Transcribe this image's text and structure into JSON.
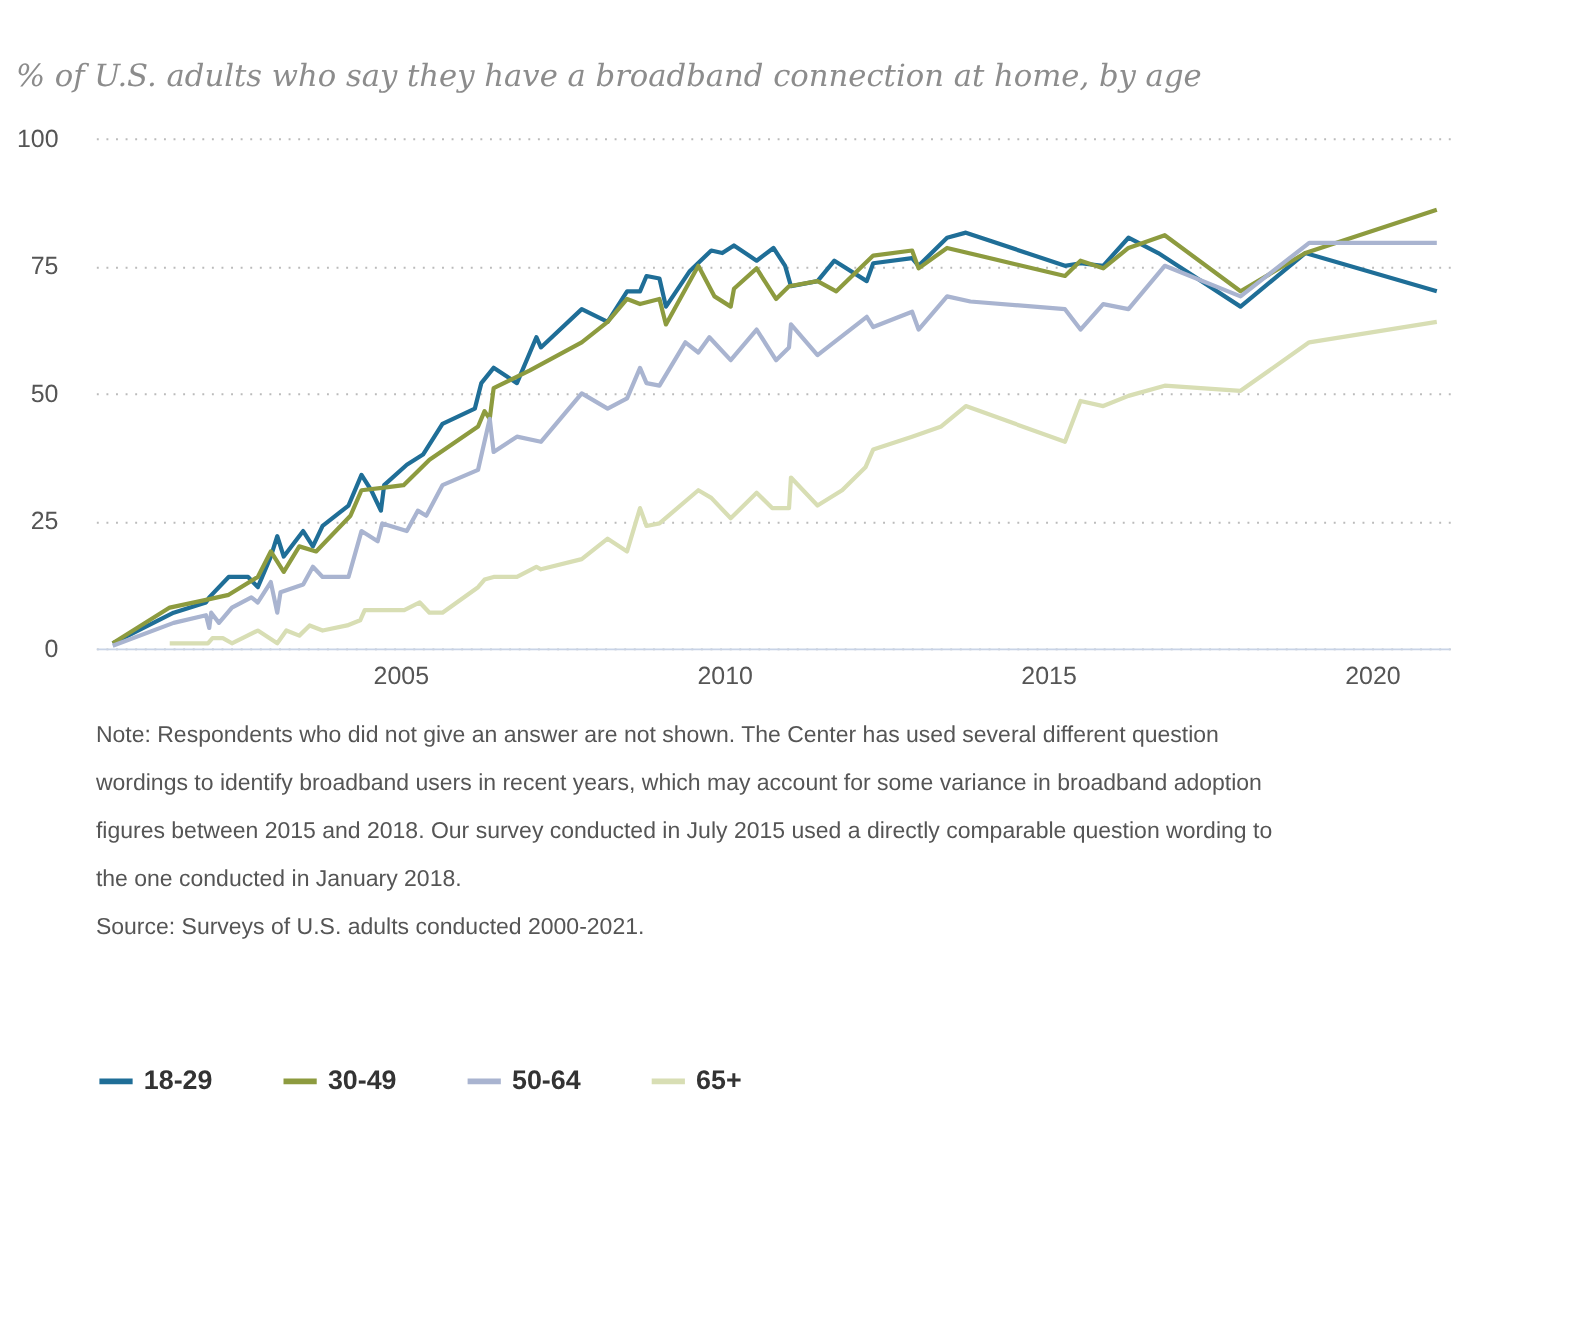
{
  "chart_data": {
    "type": "line",
    "subtitle": "% of U.S. adults who say they have a broadband connection at home, by age",
    "xlim": [
      2000.3,
      2021.2
    ],
    "xticks": [
      2005,
      2010,
      2015,
      2020
    ],
    "ylim": [
      0,
      100
    ],
    "yticks": [
      0,
      25,
      50,
      75,
      100
    ],
    "grid": "y",
    "legend": "bottom",
    "marker": "none",
    "line_style": "solid",
    "series": [
      {
        "name": "18-29",
        "color": "#1f6e97",
        "x": [
          2000.56,
          2001.5,
          2002.0,
          2002.05,
          2002.35,
          2002.65,
          2002.8,
          2003.0,
          2003.1,
          2003.2,
          2003.5,
          2003.65,
          2003.8,
          2004.2,
          2004.4,
          2004.55,
          2004.7,
          2004.75,
          2005.1,
          2005.35,
          2005.65,
          2006.15,
          2006.25,
          2006.44,
          2006.8,
          2007.1,
          2007.17,
          2007.8,
          2008.2,
          2008.5,
          2008.7,
          2008.8,
          2009.0,
          2009.1,
          2009.47,
          2009.8,
          2009.97,
          2010.15,
          2010.5,
          2010.76,
          2010.94,
          2011.03,
          2011.44,
          2011.7,
          2012.2,
          2012.3,
          2012.9,
          2013.0,
          2013.44,
          2013.73,
          2015.26,
          2015.5,
          2015.85,
          2016.24,
          2016.7,
          2017.97,
          2018.97,
          2021.0
        ],
        "values": [
          1,
          7,
          9,
          10,
          14,
          14,
          12,
          18,
          22,
          18,
          23,
          20,
          24,
          28,
          34,
          31,
          27,
          32,
          36,
          38,
          44,
          47,
          52,
          55,
          52,
          61,
          59,
          66.5,
          64,
          70,
          70,
          73,
          72.5,
          67,
          74,
          78,
          77.5,
          79,
          76,
          78.5,
          75,
          71,
          72,
          76,
          72,
          75.5,
          76.5,
          75,
          80.5,
          81.5,
          75,
          75.5,
          75,
          80.5,
          77.5,
          67,
          77.5,
          70
        ]
      },
      {
        "name": "30-49",
        "color": "#8d9b3f",
        "x": [
          2000.56,
          2001.44,
          2002.0,
          2002.35,
          2002.8,
          2003.0,
          2003.2,
          2003.44,
          2003.7,
          2004.23,
          2004.4,
          2004.75,
          2005.05,
          2005.45,
          2006.2,
          2006.3,
          2006.38,
          2006.44,
          2007.0,
          2007.8,
          2008.2,
          2008.5,
          2008.7,
          2009.0,
          2009.1,
          2009.6,
          2009.85,
          2010.1,
          2010.15,
          2010.5,
          2010.8,
          2011.0,
          2011.44,
          2011.73,
          2012.3,
          2012.9,
          2013.0,
          2013.44,
          2015.26,
          2015.5,
          2015.85,
          2016.24,
          2016.8,
          2017.97,
          2018.97,
          2021.0
        ],
        "values": [
          1,
          8,
          9.5,
          10.5,
          14,
          19,
          15,
          20,
          19,
          26,
          31,
          31.5,
          32,
          37,
          43.5,
          46.5,
          45,
          51,
          54.5,
          60,
          64,
          68.5,
          67.5,
          68.5,
          63.5,
          75,
          69,
          67,
          70.5,
          74.5,
          68.5,
          71,
          72,
          70,
          77,
          78,
          74.5,
          78.5,
          73,
          76,
          74.5,
          78.5,
          81,
          70,
          77.5,
          86
        ]
      },
      {
        "name": "50-64",
        "color": "#a9b4d0",
        "x": [
          2000.56,
          2001.5,
          2002.0,
          2002.05,
          2002.08,
          2002.2,
          2002.4,
          2002.7,
          2002.8,
          2003.0,
          2003.1,
          2003.15,
          2003.5,
          2003.65,
          2003.8,
          2004.2,
          2004.4,
          2004.65,
          2004.72,
          2005.1,
          2005.27,
          2005.4,
          2005.65,
          2006.2,
          2006.38,
          2006.44,
          2006.8,
          2007.17,
          2007.8,
          2008.2,
          2008.5,
          2008.7,
          2008.8,
          2009.0,
          2009.4,
          2009.6,
          2009.77,
          2010.1,
          2010.5,
          2010.8,
          2011.0,
          2011.03,
          2011.44,
          2012.2,
          2012.3,
          2012.9,
          2013.0,
          2013.44,
          2013.8,
          2015.26,
          2015.5,
          2015.85,
          2016.24,
          2016.8,
          2017.97,
          2019.03,
          2021.0
        ],
        "values": [
          0.5,
          5,
          6.5,
          4,
          7,
          5,
          8,
          10,
          9,
          13,
          7,
          11,
          12.5,
          16,
          14,
          14,
          23,
          21,
          24.5,
          23,
          27,
          26,
          32,
          35,
          45,
          38.5,
          41.5,
          40.5,
          50,
          47,
          49,
          55,
          52,
          51.5,
          60,
          58,
          61,
          56.5,
          62.5,
          56.5,
          59,
          63.5,
          57.5,
          65,
          63,
          66,
          62.5,
          69,
          68,
          66.5,
          62.5,
          67.5,
          66.5,
          75,
          69,
          79.5,
          79.5
        ]
      },
      {
        "name": "65+",
        "color": "#d8deb4",
        "x": [
          2001.44,
          2002.03,
          2002.1,
          2002.26,
          2002.4,
          2002.8,
          2003.1,
          2003.24,
          2003.44,
          2003.6,
          2003.8,
          2004.18,
          2004.38,
          2004.45,
          2005.06,
          2005.3,
          2005.45,
          2005.65,
          2006.2,
          2006.3,
          2006.44,
          2006.8,
          2007.1,
          2007.17,
          2007.8,
          2008.2,
          2008.5,
          2008.7,
          2008.8,
          2009.0,
          2009.6,
          2009.8,
          2010.1,
          2010.5,
          2010.74,
          2011.0,
          2011.03,
          2011.44,
          2011.82,
          2012.18,
          2012.3,
          2012.9,
          2013.35,
          2013.73,
          2015.26,
          2015.5,
          2015.85,
          2016.24,
          2016.8,
          2017.97,
          2019.03,
          2021.0
        ],
        "values": [
          1,
          1,
          2,
          2,
          1,
          3.5,
          1,
          3.5,
          2.5,
          4.5,
          3.5,
          4.5,
          5.5,
          7.5,
          7.5,
          9,
          7,
          7,
          12,
          13.5,
          14,
          14,
          16,
          15.5,
          17.5,
          21.5,
          19,
          27.5,
          24,
          24.5,
          31,
          29.5,
          25.5,
          30.5,
          27.5,
          27.5,
          33.5,
          28,
          31,
          35.5,
          39,
          41.5,
          43.5,
          47.5,
          40.5,
          48.5,
          47.5,
          49.5,
          51.5,
          50.5,
          60,
          64
        ]
      }
    ],
    "annotations": [
      "Note: Respondents who did not give an answer are not shown. The Center has used several different question wordings to identify broadband users in recent years, which may account for some variance in broadband adoption figures between 2015 and 2018. Our survey conducted in July 2015 used a directly comparable question wording to the one conducted in January 2018.",
      "Source: Surveys of U.S. adults conducted 2000-2021."
    ]
  }
}
